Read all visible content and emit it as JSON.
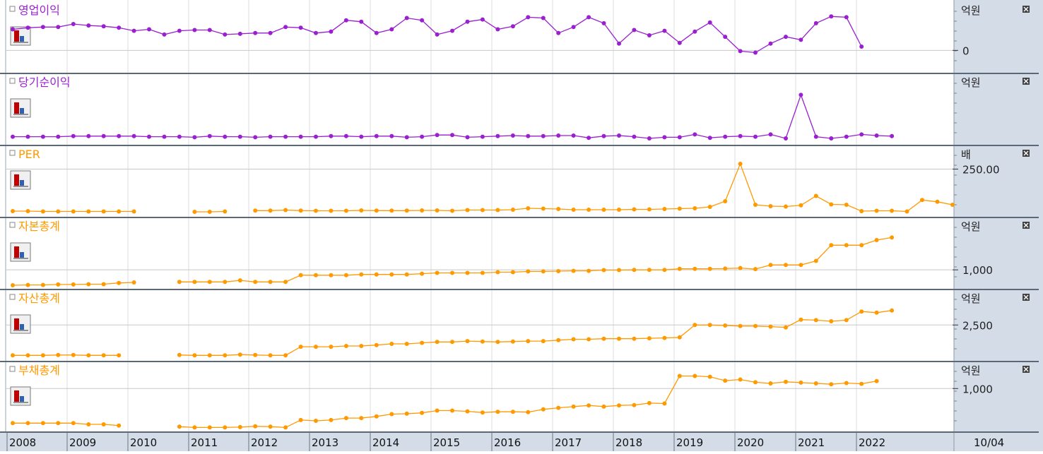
{
  "chart_data": {
    "type": "line",
    "x_axis_labels": [
      "2008",
      "2009",
      "2010",
      "2011",
      "2012",
      "2013",
      "2014",
      "2015",
      "2016",
      "2017",
      "2018",
      "2019",
      "2020",
      "2021",
      "2022"
    ],
    "date_label": "10/04",
    "panels": [
      {
        "title": "영업이익",
        "color": "#9a1fd0",
        "unit": "억원",
        "ticks": [
          {
            "label": "0",
            "value": 0
          }
        ],
        "ylim": [
          -25,
          50
        ],
        "segments": [
          [
            28,
            30,
            31,
            31,
            35,
            33,
            32,
            30,
            26,
            28,
            21,
            26,
            27,
            27,
            21,
            22,
            23,
            23,
            31,
            30,
            23,
            25,
            40,
            38,
            23,
            28,
            43,
            40,
            21,
            26,
            38,
            41,
            28,
            32,
            44,
            43,
            23,
            31,
            44,
            36,
            9,
            27,
            20,
            26,
            10,
            25,
            37,
            18,
            -1,
            -3,
            9,
            18,
            14,
            36,
            45,
            44,
            5
          ]
        ]
      },
      {
        "title": "당기순이익",
        "color": "#9a1fd0",
        "unit": "억원",
        "ticks": [],
        "ylim": [
          0,
          100
        ],
        "segments": [
          [
            8,
            8,
            8,
            8,
            9,
            9,
            9,
            9,
            9,
            8,
            8,
            8,
            7,
            9,
            8,
            8,
            7,
            8,
            8,
            8,
            8,
            9,
            9,
            8,
            9,
            9,
            7,
            8,
            11,
            11,
            7,
            8,
            9,
            10,
            9,
            9,
            10,
            10,
            6,
            9,
            10,
            8,
            5,
            7,
            7,
            12,
            6,
            8,
            9,
            8,
            12,
            5,
            82,
            8,
            5,
            8,
            12,
            10,
            9
          ]
        ]
      },
      {
        "title": "PER",
        "color": "#ff9900",
        "unit": "배",
        "ticks": [
          {
            "label": "250.00",
            "value": 250
          }
        ],
        "ylim": [
          0,
          320
        ],
        "segments": [
          [
            12,
            12,
            10,
            10,
            10,
            10,
            10,
            10,
            10
          ],
          [
            8,
            8,
            10
          ],
          [
            15,
            15,
            18,
            15,
            14,
            14,
            14,
            16,
            15,
            15,
            15,
            16,
            16,
            14,
            18,
            18,
            18,
            20,
            28,
            26,
            24,
            20,
            20,
            20,
            20,
            22,
            22,
            24,
            26,
            28,
            36,
            68,
            280,
            48,
            40,
            38,
            45,
            98,
            50,
            48,
            12,
            14,
            14,
            10,
            75,
            65,
            48
          ]
        ]
      },
      {
        "title": "자본총계",
        "color": "#ff9900",
        "unit": "억원",
        "ticks": [
          {
            "label": "1,000",
            "value": 1000
          }
        ],
        "ylim": [
          700,
          1800
        ],
        "segments": [
          [
            700,
            705,
            705,
            715,
            715,
            720,
            720,
            745,
            755
          ],
          [
            765,
            765,
            765,
            765,
            795,
            765,
            765,
            765,
            895,
            895,
            895,
            895,
            910,
            910,
            910,
            910,
            925,
            940,
            940,
            940,
            940,
            955,
            955,
            970,
            970,
            975,
            980,
            980,
            995,
            995,
            1000,
            1000,
            1000,
            1020,
            1020,
            1020,
            1025,
            1035,
            1015,
            1095,
            1095,
            1095,
            1175,
            1480,
            1480,
            1480,
            1580,
            1630
          ]
        ]
      },
      {
        "title": "자산총계",
        "color": "#ff9900",
        "unit": "억원",
        "ticks": [
          {
            "label": "2,500",
            "value": 2500
          }
        ],
        "ylim": [
          1300,
          3400
        ],
        "segments": [
          [
            1370,
            1370,
            1370,
            1385,
            1385,
            1370,
            1370,
            1370
          ],
          [
            1385,
            1370,
            1370,
            1370,
            1400,
            1385,
            1370,
            1370,
            1690,
            1690,
            1690,
            1720,
            1720,
            1755,
            1800,
            1800,
            1835,
            1870,
            1870,
            1900,
            1885,
            1870,
            1885,
            1900,
            1900,
            1935,
            1970,
            1970,
            1990,
            1990,
            1990,
            2005,
            2020,
            2040,
            2500,
            2500,
            2480,
            2460,
            2460,
            2440,
            2410,
            2700,
            2680,
            2640,
            2680,
            3000,
            2960,
            3040
          ]
        ]
      },
      {
        "title": "부채총계",
        "color": "#ff9900",
        "unit": "억원",
        "ticks": [
          {
            "label": "1,000",
            "value": 1000
          }
        ],
        "ylim": [
          0,
          1400
        ],
        "segments": [
          [
            120,
            120,
            120,
            120,
            120,
            90,
            90,
            60
          ],
          [
            30,
            10,
            10,
            10,
            20,
            40,
            30,
            10,
            200,
            180,
            200,
            250,
            250,
            290,
            350,
            360,
            380,
            440,
            440,
            420,
            390,
            410,
            410,
            400,
            470,
            510,
            540,
            570,
            540,
            570,
            580,
            630,
            620,
            1320,
            1320,
            1300,
            1200,
            1230,
            1160,
            1130,
            1170,
            1150,
            1130,
            1110,
            1140,
            1120,
            1190
          ]
        ]
      }
    ]
  }
}
